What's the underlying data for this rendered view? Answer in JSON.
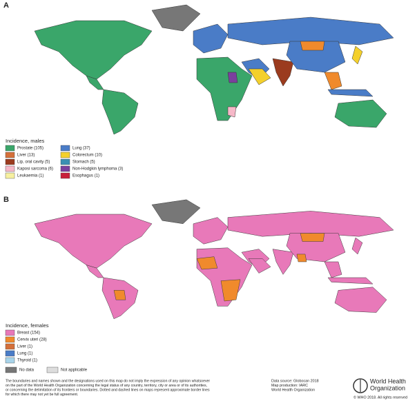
{
  "panels": [
    {
      "label": "A",
      "legend_title": "Incidence, males",
      "legend": [
        {
          "label": "Prostate (105)",
          "color": "#3aa66a"
        },
        {
          "label": "Liver (13)",
          "color": "#d4703a"
        },
        {
          "label": "Lip, oral cavity (5)",
          "color": "#9b3b1e"
        },
        {
          "label": "Kaposi sarcoma (6)",
          "color": "#f6b8c8"
        },
        {
          "label": "Leukaemia (1)",
          "color": "#f7f0a0"
        },
        {
          "label": "Lung (37)",
          "color": "#4a7cc7"
        },
        {
          "label": "Colorectum (10)",
          "color": "#f4d02c"
        },
        {
          "label": "Stomach (5)",
          "color": "#3b8fb3"
        },
        {
          "label": "Non-Hodgkin lymphoma (3)",
          "color": "#7b3f9e"
        },
        {
          "label": "Esophagus (1)",
          "color": "#c8203a"
        }
      ]
    },
    {
      "label": "B",
      "legend_title": "Incidence, females",
      "legend": [
        {
          "label": "Breast (154)",
          "color": "#e879b9"
        },
        {
          "label": "Cervix uteri (28)",
          "color": "#f08a2c"
        },
        {
          "label": "Liver (1)",
          "color": "#d4703a"
        },
        {
          "label": "Lung (1)",
          "color": "#4a7cc7"
        },
        {
          "label": "Thyroid (1)",
          "color": "#a8d4ea"
        }
      ]
    }
  ],
  "no_data": "No data",
  "not_applicable": "Not applicable",
  "disclaimer": [
    "The boundaries and names shown and the designations used on this map do not imply the expression of any opinion whatsoever",
    "on the part of the World Health Organization concerning the legal status of any country, territory, city or area or of its authorities,",
    "or concerning the delimitation of its frontiers or boundaries. Dotted and dashed lines on maps represent approximate border lines",
    "for which there may not yet be full agreement."
  ],
  "source": [
    "Data source: Globocan 2018",
    "Map production: IARC",
    "World Health Organization"
  ],
  "who_name": [
    "World Health",
    "Organization"
  ],
  "copyright": "© WHO 2018. All rights reserved"
}
